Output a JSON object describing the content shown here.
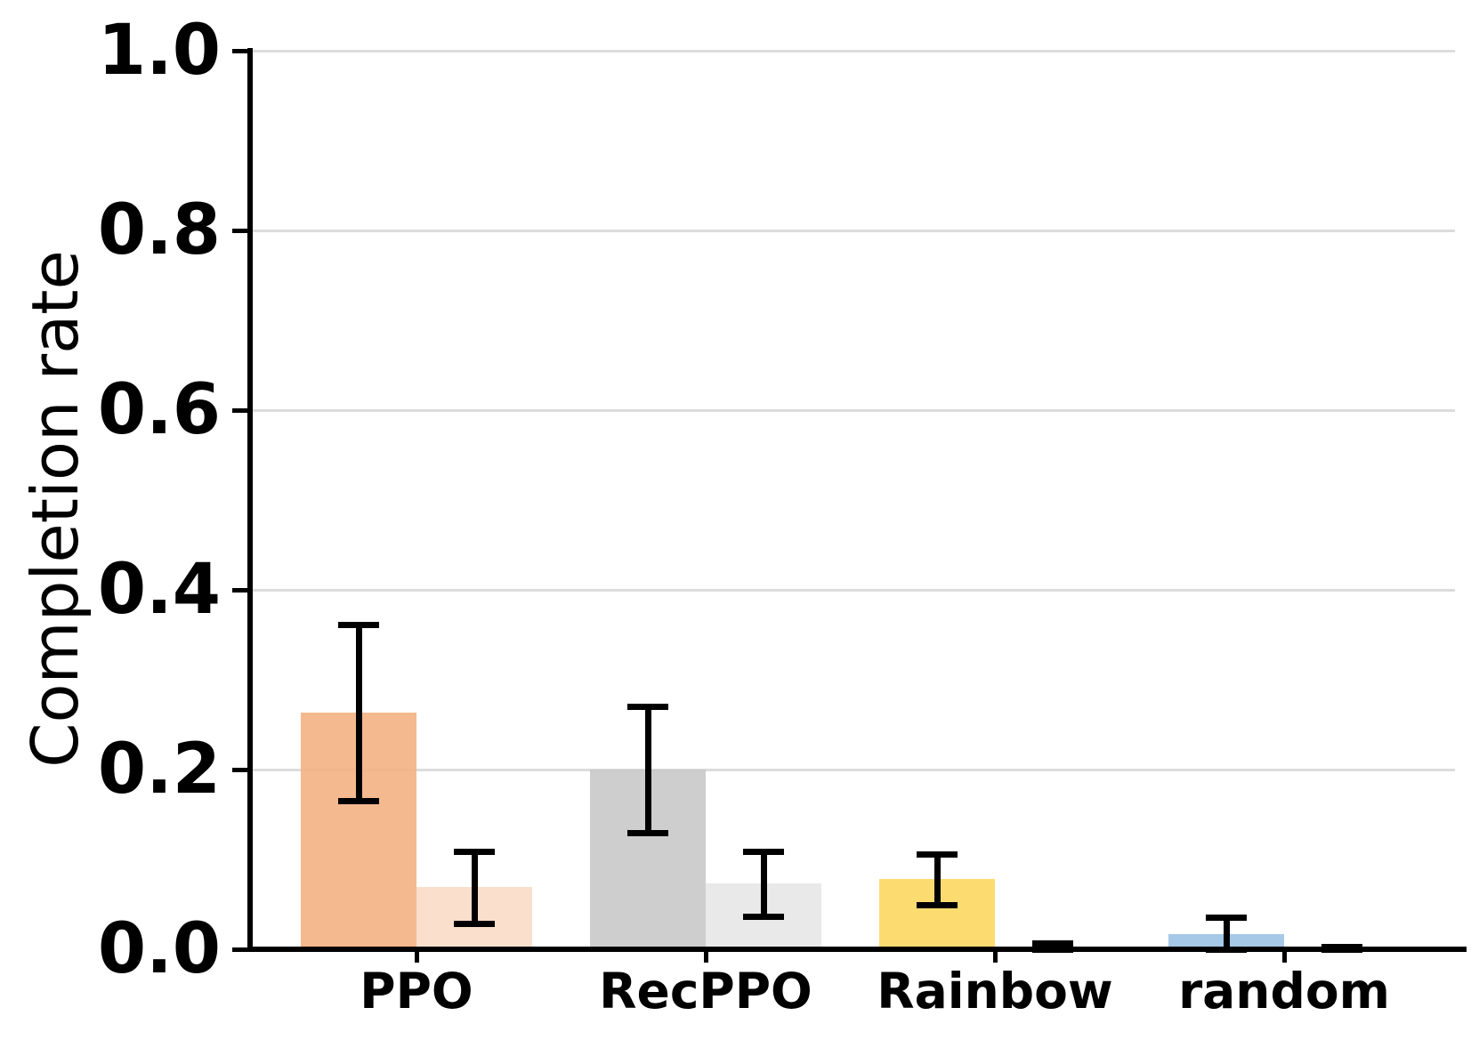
{
  "chart_data": {
    "type": "bar",
    "title": "",
    "xlabel": "",
    "ylabel": "Completion rate",
    "categories": [
      "PPO",
      "RecPPO",
      "Rainbow",
      "random"
    ],
    "series": [
      {
        "name": "dark-shade",
        "values": [
          0.263,
          0.2,
          0.078,
          0.017
        ],
        "errors": [
          0.098,
          0.07,
          0.028,
          0.019
        ],
        "colors": [
          "#F4B183",
          "#C9C9C9",
          "#FCD862",
          "#9DC3E6"
        ]
      },
      {
        "name": "light-shade",
        "values": [
          0.069,
          0.073,
          0.003,
          0.001
        ],
        "errors": [
          0.04,
          0.036,
          0.004,
          0.002
        ],
        "colors": [
          "#F8DCC6",
          "#E7E7E7",
          "#FDF1CB",
          "#DEEBF7"
        ]
      }
    ],
    "ylim": [
      0,
      1.0
    ],
    "ytick_labels": [
      "0.0",
      "0.2",
      "0.4",
      "0.6",
      "0.8",
      "1.0"
    ],
    "grid": "horizontal",
    "legend": "none",
    "grid_color": "#DCDCDC",
    "axis_color": "#000000",
    "error_bar_color": "#000000"
  }
}
